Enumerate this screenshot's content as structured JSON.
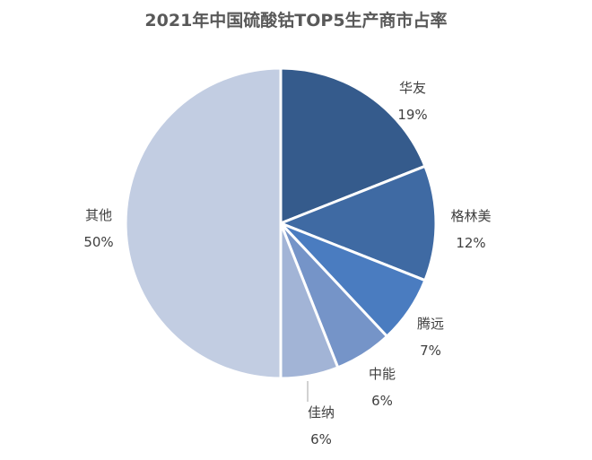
{
  "chart_data": {
    "type": "pie",
    "title": "2021年中国硫酸钴TOP5生产商市占率",
    "categories": [
      "华友",
      "格林美",
      "腾远",
      "中能",
      "佳纳",
      "其他"
    ],
    "values": [
      19,
      12,
      7,
      6,
      6,
      50
    ],
    "unit": "%",
    "colors": [
      "#355b8c",
      "#3f6aa3",
      "#4a7cc0",
      "#7594c8",
      "#a2b4d6",
      "#c2cde2"
    ],
    "labels": [
      {
        "name": "华友",
        "pct": "19%"
      },
      {
        "name": "格林美",
        "pct": "12%"
      },
      {
        "name": "腾远",
        "pct": "7%"
      },
      {
        "name": "中能",
        "pct": "6%"
      },
      {
        "name": "佳纳",
        "pct": "6%"
      },
      {
        "name": "其他",
        "pct": "50%"
      }
    ],
    "legend": "none",
    "start_angle": "12 o'clock, clockwise"
  }
}
